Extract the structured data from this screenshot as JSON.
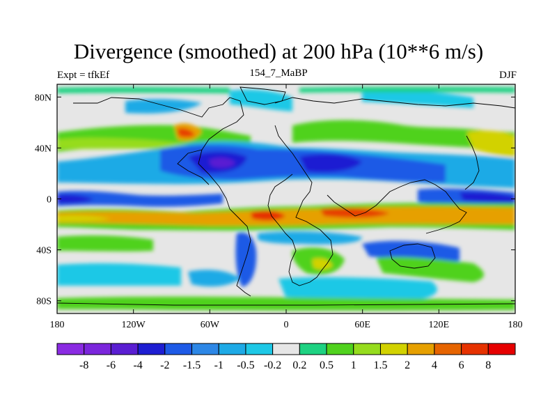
{
  "title": "Divergence (smoothed) at 200 hPa (10**6 m/s)",
  "subtitle_left": "Expt = tfkEf",
  "subtitle_center": "154_7_MaBP",
  "subtitle_right": "DJF",
  "map": {
    "lon_ticks": [
      "180",
      "120W",
      "60W",
      "0",
      "60E",
      "120E",
      "180"
    ],
    "lat_ticks": [
      "80N",
      "40N",
      "0",
      "40S",
      "80S"
    ],
    "background_color": "#e6e6e6"
  },
  "colorbar": {
    "colors": [
      "#8a2be2",
      "#7b26dc",
      "#5a1ed2",
      "#1e1ed2",
      "#1e5ae6",
      "#2d87e6",
      "#1eaae6",
      "#1ec8e6",
      "#e6e6e6",
      "#1ed282",
      "#50d21e",
      "#96dc1e",
      "#d2d200",
      "#e6a000",
      "#e66400",
      "#e63200",
      "#e60000"
    ],
    "labels": [
      "-8",
      "-6",
      "-4",
      "-2",
      "-1.5",
      "-1",
      "-0.5",
      "-0.2",
      "0.2",
      "0.5",
      "1",
      "1.5",
      "2",
      "4",
      "6",
      "8"
    ]
  }
}
